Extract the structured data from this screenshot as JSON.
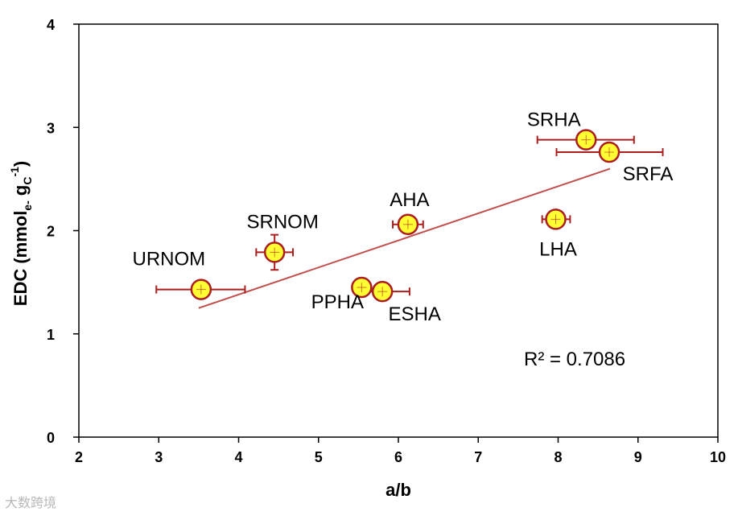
{
  "chart_data": {
    "type": "scatter",
    "xlabel": "a/b",
    "ylabel": {
      "prefix": "EDC (mmol",
      "sub1": "e-",
      "middle": " g",
      "sub2": "C",
      "sup": "-1",
      "suffix": ")"
    },
    "xlim": [
      2,
      10
    ],
    "ylim": [
      0,
      4
    ],
    "xticks": [
      2,
      3,
      4,
      5,
      6,
      7,
      8,
      9,
      10
    ],
    "yticks": [
      0,
      1,
      2,
      3,
      4
    ],
    "grid": false,
    "point_color": "#ffff33",
    "point_edge_color": "#aa1e1e",
    "trend_color": "#c0504d",
    "points": [
      {
        "label": "URNOM",
        "x": 3.53,
        "y": 1.43,
        "x_err": [
          2.97,
          4.08
        ],
        "y_err": null
      },
      {
        "label": "SRNOM",
        "x": 4.45,
        "y": 1.79,
        "x_err": [
          4.22,
          4.68
        ],
        "y_err": [
          1.62,
          1.96
        ]
      },
      {
        "label": "PPHA",
        "x": 5.54,
        "y": 1.45,
        "x_err": null,
        "y_err": null
      },
      {
        "label": "ESHA",
        "x": 5.8,
        "y": 1.41,
        "x_err": [
          5.47,
          6.14
        ],
        "y_err": null
      },
      {
        "label": "AHA",
        "x": 6.12,
        "y": 2.06,
        "x_err": [
          5.93,
          6.31
        ],
        "y_err": null
      },
      {
        "label": "LHA",
        "x": 7.97,
        "y": 2.11,
        "x_err": [
          7.8,
          8.15
        ],
        "y_err": null
      },
      {
        "label": "SRHA",
        "x": 8.35,
        "y": 2.88,
        "x_err": [
          7.74,
          8.95
        ],
        "y_err": null
      },
      {
        "label": "SRFA",
        "x": 8.64,
        "y": 2.76,
        "x_err": [
          7.98,
          9.31
        ],
        "y_err": null
      }
    ],
    "trendline": {
      "x": [
        3.5,
        8.65
      ],
      "y": [
        1.25,
        2.6
      ]
    },
    "annotation": "R² = 0.7086"
  },
  "watermark": "大数跨境"
}
